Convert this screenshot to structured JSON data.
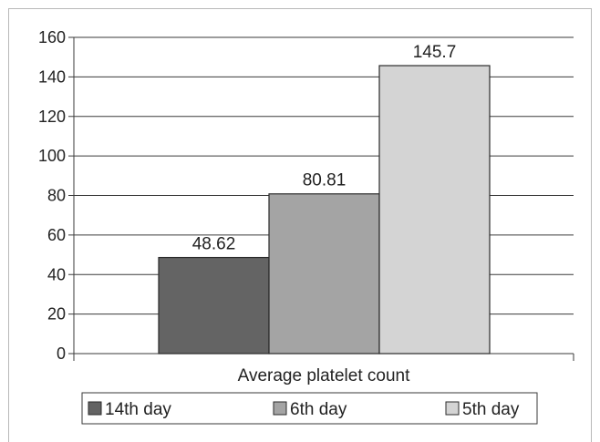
{
  "chart_data": {
    "type": "bar",
    "title": "",
    "xlabel": "Average platelet count",
    "ylabel": "",
    "ylim": [
      0,
      160
    ],
    "yticks": [
      0,
      20,
      40,
      60,
      80,
      100,
      120,
      140,
      160
    ],
    "grid": true,
    "legend_position": "bottom",
    "categories": [
      "Average platelet count"
    ],
    "series": [
      {
        "name": "14th day",
        "values": [
          48.62
        ],
        "label": "48.62",
        "color": "#646464"
      },
      {
        "name": "6th day",
        "values": [
          80.81
        ],
        "label": "80.81",
        "color": "#a4a4a4"
      },
      {
        "name": "5th day",
        "values": [
          145.7
        ],
        "label": "145.7",
        "color": "#d4d4d4"
      }
    ]
  }
}
